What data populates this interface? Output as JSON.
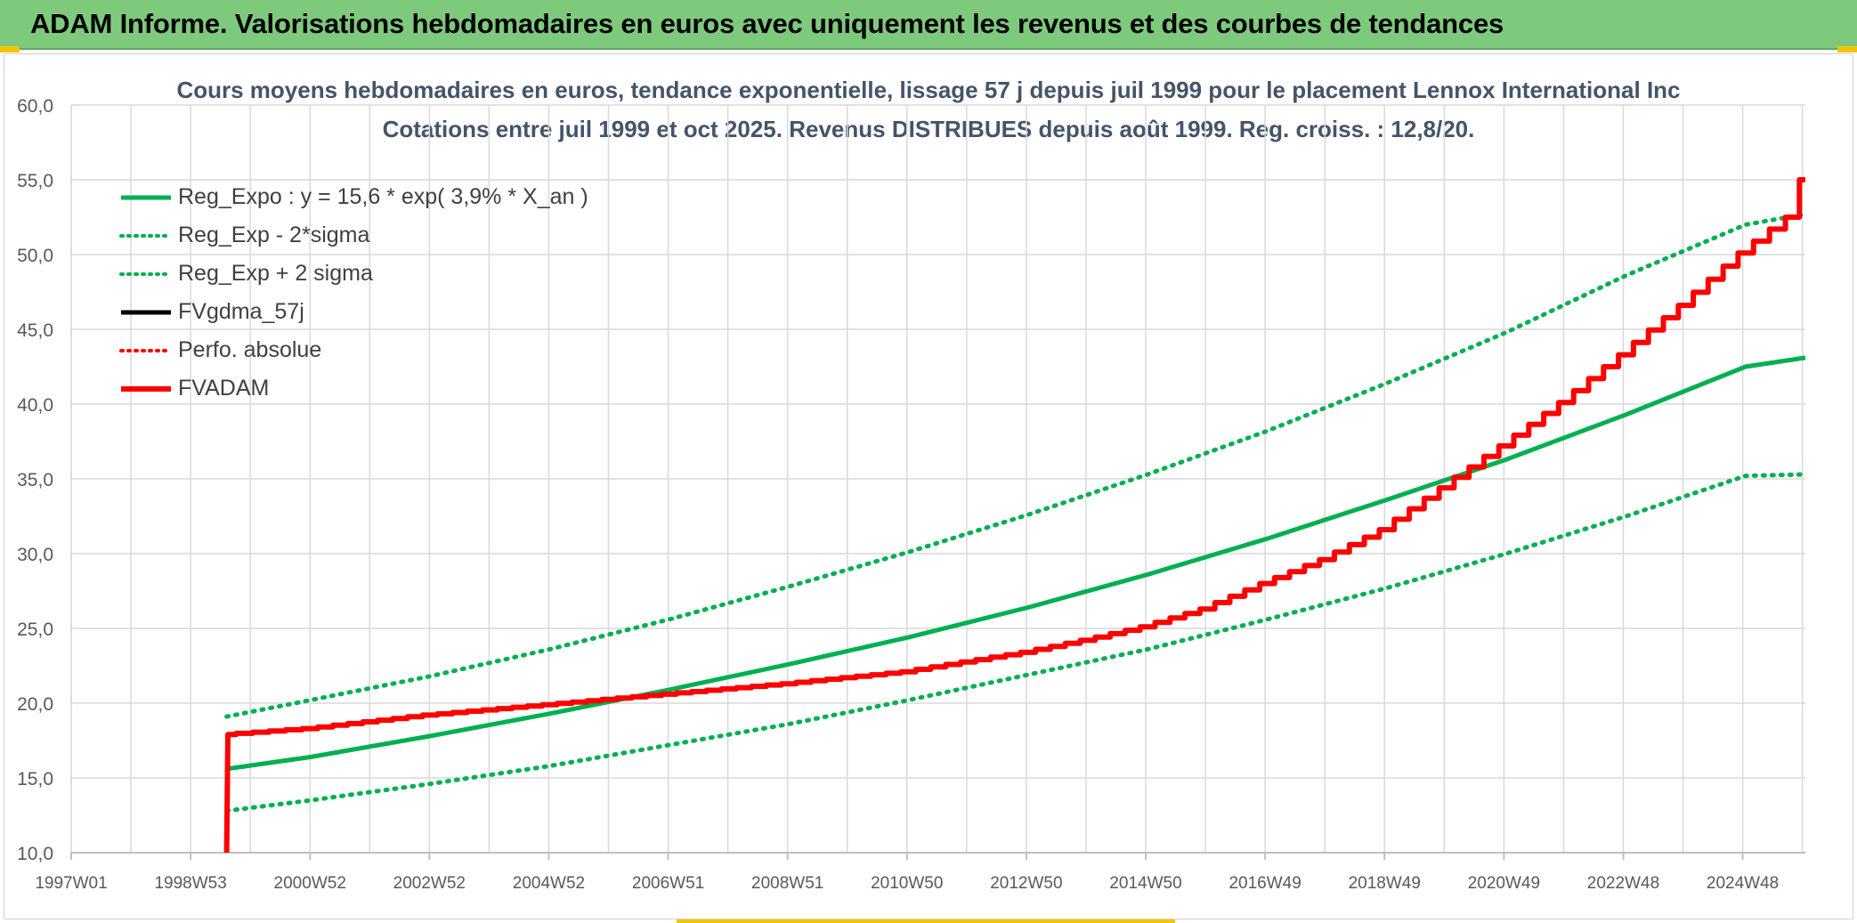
{
  "banner": {
    "title": "ADAM Informe. Valorisations hebdomadaires en euros avec uniquement les revenus et des courbes de tendances"
  },
  "colors": {
    "banner_bg": "#7dca7d",
    "accent_yellow": "#f5c400",
    "green": "#00b050",
    "red": "#ff0000",
    "black": "#000000",
    "title_text": "#44546a",
    "grid": "#d9d9d9"
  },
  "chart_data": {
    "type": "line",
    "title": "Cours moyens hebdomadaires en euros, tendance exponentielle, lissage 57 j depuis juil 1999 pour le placement Lennox International Inc",
    "subtitle": "Cotations entre juil 1999 et oct 2025. Revenus DISTRIBUES depuis août 1999. Reg. croiss. : 12,8/20.",
    "xlabel": "",
    "ylabel": "",
    "ylim": [
      10,
      60
    ],
    "y_ticks": [
      "60,0",
      "55,0",
      "50,0",
      "45,0",
      "40,0",
      "35,0",
      "30,0",
      "25,0",
      "20,0",
      "15,0",
      "10,0"
    ],
    "x_range_years": [
      1997.0,
      2026.0
    ],
    "x_ticks": [
      "1997W01",
      "1998W53",
      "2000W52",
      "2002W52",
      "2004W52",
      "2006W51",
      "2008W51",
      "2010W50",
      "2012W50",
      "2014W50",
      "2016W49",
      "2018W49",
      "2020W49",
      "2022W48",
      "2024W48"
    ],
    "grid": true,
    "legend_position": "top-left",
    "series": [
      {
        "name": "Reg_Expo : y = 15,6 * exp( 3,9% *  X_an )",
        "color": "#00b050",
        "style": "solid",
        "x": [
          1999.6,
          2001,
          2003,
          2005,
          2007,
          2009,
          2011,
          2013,
          2015,
          2017,
          2019,
          2021,
          2023,
          2025,
          2026
        ],
        "y": [
          15.6,
          16.4,
          17.8,
          19.3,
          20.9,
          22.6,
          24.4,
          26.4,
          28.6,
          31.0,
          33.6,
          36.3,
          39.3,
          42.5,
          43.1
        ]
      },
      {
        "name": "Reg_Exp - 2*sigma",
        "color": "#00b050",
        "style": "dotted",
        "x": [
          1999.6,
          2001,
          2003,
          2005,
          2007,
          2009,
          2011,
          2013,
          2015,
          2017,
          2019,
          2021,
          2023,
          2025,
          2026
        ],
        "y": [
          12.8,
          13.5,
          14.6,
          15.8,
          17.2,
          18.6,
          20.2,
          21.9,
          23.6,
          25.6,
          27.7,
          30.0,
          32.5,
          35.2,
          35.3
        ]
      },
      {
        "name": "Reg_Exp + 2 sigma",
        "color": "#00b050",
        "style": "dotted",
        "x": [
          1999.6,
          2001,
          2003,
          2005,
          2007,
          2009,
          2011,
          2013,
          2015,
          2017,
          2019,
          2021,
          2023,
          2025,
          2026
        ],
        "y": [
          19.1,
          20.2,
          21.8,
          23.6,
          25.6,
          27.8,
          30.1,
          32.6,
          35.3,
          38.2,
          41.4,
          44.8,
          48.6,
          52.0,
          52.7
        ]
      },
      {
        "name": "FVgdma_57j",
        "color": "#000000",
        "style": "solid",
        "x": [
          1999.6,
          1999.62,
          2001,
          2003,
          2005,
          2007,
          2009,
          2011,
          2013,
          2014,
          2015,
          2016,
          2017,
          2018,
          2019,
          2020,
          2021,
          2022,
          2023,
          2024,
          2025,
          2025.8,
          2026
        ],
        "y": [
          10.0,
          17.9,
          18.3,
          19.2,
          19.9,
          20.6,
          21.3,
          22.1,
          23.4,
          24.2,
          25.1,
          26.3,
          28.0,
          29.6,
          31.6,
          34.4,
          37.2,
          40.1,
          43.3,
          46.6,
          50.1,
          52.5,
          55.0
        ]
      },
      {
        "name": "Perfo. absolue",
        "color": "#ff0000",
        "style": "dotted",
        "x": [],
        "y": []
      },
      {
        "name": "FVADAM",
        "color": "#ff0000",
        "style": "solid-thick",
        "x": [
          1999.6,
          1999.62,
          2001,
          2003,
          2005,
          2007,
          2009,
          2011,
          2013,
          2014,
          2015,
          2016,
          2017,
          2018,
          2019,
          2020,
          2021,
          2022,
          2023,
          2024,
          2025,
          2025.8,
          2026
        ],
        "y": [
          10.0,
          17.9,
          18.3,
          19.2,
          19.9,
          20.6,
          21.3,
          22.1,
          23.4,
          24.2,
          25.1,
          26.3,
          28.0,
          29.6,
          31.6,
          34.4,
          37.2,
          40.1,
          43.3,
          46.6,
          50.1,
          52.5,
          55.0
        ]
      }
    ]
  }
}
